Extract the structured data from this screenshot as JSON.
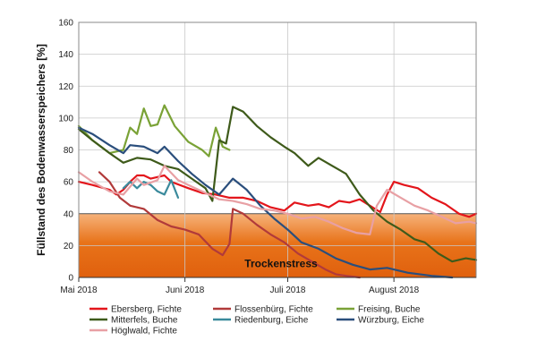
{
  "chart_data": {
    "type": "line",
    "title": "",
    "xlabel": "",
    "ylabel": "Füllstand des Bodenwasserspeichers [%]",
    "ylim": [
      0,
      160
    ],
    "yticks": [
      0,
      20,
      40,
      60,
      80,
      100,
      120,
      140,
      160
    ],
    "xlim": [
      "2018-05-01",
      "2018-08-25"
    ],
    "xticks": [
      {
        "date": "2018-05-01",
        "label": "Mai 2018"
      },
      {
        "date": "2018-06-01",
        "label": "Juni 2018"
      },
      {
        "date": "2018-07-01",
        "label": "Juli 2018"
      },
      {
        "date": "2018-08-01",
        "label": "August 2018"
      }
    ],
    "grid": true,
    "legend_position": "bottom",
    "drought_zone": {
      "label": "Trockenstress",
      "from": 0,
      "to": 40,
      "color": "#e8731a"
    },
    "series": [
      {
        "name": "Ebersberg, Fichte",
        "color": "#e3151b",
        "points": [
          [
            "2018-05-01",
            60
          ],
          [
            "2018-05-05",
            58
          ],
          [
            "2018-05-10",
            55
          ],
          [
            "2018-05-12",
            52
          ],
          [
            "2018-05-14",
            55
          ],
          [
            "2018-05-16",
            60
          ],
          [
            "2018-05-18",
            64
          ],
          [
            "2018-05-20",
            64
          ],
          [
            "2018-05-22",
            62
          ],
          [
            "2018-05-24",
            63
          ],
          [
            "2018-05-26",
            64
          ],
          [
            "2018-05-28",
            60
          ],
          [
            "2018-06-02",
            56
          ],
          [
            "2018-06-06",
            53
          ],
          [
            "2018-06-10",
            52
          ],
          [
            "2018-06-14",
            50
          ],
          [
            "2018-06-18",
            50
          ],
          [
            "2018-06-22",
            48
          ],
          [
            "2018-06-26",
            44
          ],
          [
            "2018-06-30",
            42
          ],
          [
            "2018-07-03",
            47
          ],
          [
            "2018-07-07",
            45
          ],
          [
            "2018-07-10",
            46
          ],
          [
            "2018-07-13",
            44
          ],
          [
            "2018-07-16",
            48
          ],
          [
            "2018-07-19",
            47
          ],
          [
            "2018-07-22",
            49
          ],
          [
            "2018-07-25",
            45
          ],
          [
            "2018-07-28",
            41
          ],
          [
            "2018-07-30",
            52
          ],
          [
            "2018-08-01",
            60
          ],
          [
            "2018-08-04",
            58
          ],
          [
            "2018-08-08",
            56
          ],
          [
            "2018-08-12",
            50
          ],
          [
            "2018-08-16",
            46
          ],
          [
            "2018-08-20",
            40
          ],
          [
            "2018-08-23",
            38
          ],
          [
            "2018-08-25",
            40
          ]
        ]
      },
      {
        "name": "Flossenbürg, Fichte",
        "color": "#b13a3a",
        "points": [
          [
            "2018-05-07",
            66
          ],
          [
            "2018-05-10",
            60
          ],
          [
            "2018-05-13",
            50
          ],
          [
            "2018-05-16",
            45
          ],
          [
            "2018-05-20",
            43
          ],
          [
            "2018-05-24",
            36
          ],
          [
            "2018-05-28",
            32
          ],
          [
            "2018-06-01",
            30
          ],
          [
            "2018-06-05",
            27
          ],
          [
            "2018-06-09",
            18
          ],
          [
            "2018-06-12",
            14
          ],
          [
            "2018-06-14",
            21
          ],
          [
            "2018-06-15",
            43
          ],
          [
            "2018-06-18",
            40
          ],
          [
            "2018-06-22",
            33
          ],
          [
            "2018-06-26",
            27
          ],
          [
            "2018-06-30",
            22
          ],
          [
            "2018-07-04",
            15
          ],
          [
            "2018-07-08",
            10
          ],
          [
            "2018-07-12",
            5
          ],
          [
            "2018-07-15",
            2
          ],
          [
            "2018-07-18",
            1
          ],
          [
            "2018-07-22",
            0
          ]
        ]
      },
      {
        "name": "Freising, Buche",
        "color": "#7aa236",
        "points": [
          [
            "2018-05-01",
            95
          ],
          [
            "2018-05-05",
            86
          ],
          [
            "2018-05-10",
            78
          ],
          [
            "2018-05-14",
            80
          ],
          [
            "2018-05-16",
            94
          ],
          [
            "2018-05-18",
            90
          ],
          [
            "2018-05-20",
            106
          ],
          [
            "2018-05-22",
            95
          ],
          [
            "2018-05-24",
            96
          ],
          [
            "2018-05-26",
            108
          ],
          [
            "2018-05-29",
            95
          ],
          [
            "2018-06-02",
            85
          ],
          [
            "2018-06-06",
            80
          ],
          [
            "2018-06-08",
            76
          ],
          [
            "2018-06-10",
            94
          ],
          [
            "2018-06-12",
            82
          ],
          [
            "2018-06-14",
            80
          ]
        ]
      },
      {
        "name": "Mitterfels, Buche",
        "color": "#3e5a1a",
        "points": [
          [
            "2018-05-01",
            93
          ],
          [
            "2018-05-05",
            86
          ],
          [
            "2018-05-10",
            78
          ],
          [
            "2018-05-14",
            72
          ],
          [
            "2018-05-18",
            75
          ],
          [
            "2018-05-22",
            74
          ],
          [
            "2018-05-26",
            70
          ],
          [
            "2018-05-30",
            68
          ],
          [
            "2018-06-03",
            62
          ],
          [
            "2018-06-07",
            56
          ],
          [
            "2018-06-09",
            48
          ],
          [
            "2018-06-11",
            86
          ],
          [
            "2018-06-13",
            84
          ],
          [
            "2018-06-15",
            107
          ],
          [
            "2018-06-18",
            104
          ],
          [
            "2018-06-22",
            95
          ],
          [
            "2018-06-26",
            88
          ],
          [
            "2018-06-30",
            82
          ],
          [
            "2018-07-03",
            78
          ],
          [
            "2018-07-07",
            70
          ],
          [
            "2018-07-10",
            75
          ],
          [
            "2018-07-14",
            70
          ],
          [
            "2018-07-18",
            65
          ],
          [
            "2018-07-22",
            52
          ],
          [
            "2018-07-26",
            42
          ],
          [
            "2018-07-30",
            35
          ],
          [
            "2018-08-03",
            30
          ],
          [
            "2018-08-07",
            24
          ],
          [
            "2018-08-10",
            22
          ],
          [
            "2018-08-14",
            15
          ],
          [
            "2018-08-18",
            10
          ],
          [
            "2018-08-22",
            12
          ],
          [
            "2018-08-25",
            11
          ]
        ]
      },
      {
        "name": "Riedenburg, Eiche",
        "color": "#3a8a9c",
        "points": [
          [
            "2018-05-14",
            56
          ],
          [
            "2018-05-16",
            60
          ],
          [
            "2018-05-18",
            56
          ],
          [
            "2018-05-20",
            60
          ],
          [
            "2018-05-22",
            58
          ],
          [
            "2018-05-24",
            54
          ],
          [
            "2018-05-26",
            52
          ],
          [
            "2018-05-28",
            61
          ],
          [
            "2018-05-30",
            50
          ]
        ]
      },
      {
        "name": "Würzburg, Eiche",
        "color": "#2a4e7c",
        "points": [
          [
            "2018-05-01",
            94
          ],
          [
            "2018-05-05",
            90
          ],
          [
            "2018-05-10",
            83
          ],
          [
            "2018-05-14",
            78
          ],
          [
            "2018-05-16",
            83
          ],
          [
            "2018-05-20",
            82
          ],
          [
            "2018-05-24",
            78
          ],
          [
            "2018-05-26",
            82
          ],
          [
            "2018-05-30",
            73
          ],
          [
            "2018-06-03",
            65
          ],
          [
            "2018-06-07",
            58
          ],
          [
            "2018-06-11",
            52
          ],
          [
            "2018-06-15",
            62
          ],
          [
            "2018-06-19",
            55
          ],
          [
            "2018-06-23",
            45
          ],
          [
            "2018-06-27",
            37
          ],
          [
            "2018-07-01",
            30
          ],
          [
            "2018-07-05",
            22
          ],
          [
            "2018-07-10",
            18
          ],
          [
            "2018-07-15",
            12
          ],
          [
            "2018-07-20",
            8
          ],
          [
            "2018-07-25",
            5
          ],
          [
            "2018-07-30",
            6
          ],
          [
            "2018-08-05",
            3
          ],
          [
            "2018-08-12",
            1
          ],
          [
            "2018-08-18",
            0
          ]
        ]
      },
      {
        "name": "Höglwald, Fichte",
        "color": "#e8a0a4",
        "points": [
          [
            "2018-05-01",
            66
          ],
          [
            "2018-05-05",
            60
          ],
          [
            "2018-05-10",
            54
          ],
          [
            "2018-05-14",
            52
          ],
          [
            "2018-05-18",
            62
          ],
          [
            "2018-05-20",
            58
          ],
          [
            "2018-05-24",
            61
          ],
          [
            "2018-05-26",
            70
          ],
          [
            "2018-05-30",
            61
          ],
          [
            "2018-06-03",
            57
          ],
          [
            "2018-06-07",
            53
          ],
          [
            "2018-06-11",
            49
          ],
          [
            "2018-06-15",
            48
          ],
          [
            "2018-06-19",
            46
          ],
          [
            "2018-06-23",
            43
          ],
          [
            "2018-06-27",
            42
          ],
          [
            "2018-07-01",
            40
          ],
          [
            "2018-07-05",
            37
          ],
          [
            "2018-07-09",
            38
          ],
          [
            "2018-07-13",
            35
          ],
          [
            "2018-07-17",
            31
          ],
          [
            "2018-07-21",
            28
          ],
          [
            "2018-07-25",
            27
          ],
          [
            "2018-07-27",
            45
          ],
          [
            "2018-07-30",
            55
          ],
          [
            "2018-08-03",
            50
          ],
          [
            "2018-08-07",
            45
          ],
          [
            "2018-08-11",
            42
          ],
          [
            "2018-08-15",
            38
          ],
          [
            "2018-08-19",
            34
          ],
          [
            "2018-08-23",
            35
          ],
          [
            "2018-08-25",
            34
          ]
        ]
      }
    ]
  }
}
